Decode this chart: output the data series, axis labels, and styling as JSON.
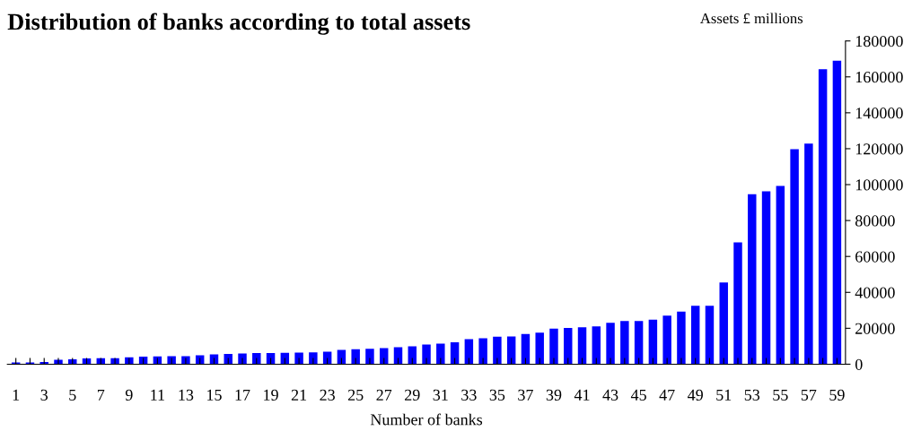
{
  "chart_data": {
    "type": "bar",
    "title": "Distribution of banks according to total assets",
    "ylabel": "Assets £ millions",
    "xlabel": "Number of banks",
    "categories": [
      "1",
      null,
      "3",
      null,
      "5",
      null,
      "7",
      null,
      "9",
      null,
      "11",
      null,
      "13",
      null,
      "15",
      null,
      "17",
      null,
      "19",
      null,
      "21",
      null,
      "23",
      null,
      "25",
      null,
      "27",
      null,
      "29",
      null,
      "31",
      null,
      "33",
      null,
      "35",
      null,
      "37",
      null,
      "39",
      null,
      "41",
      null,
      "43",
      null,
      "45",
      null,
      "47",
      null,
      "49",
      null,
      "51",
      null,
      "53",
      null,
      "55",
      null,
      "57",
      null,
      "59"
    ],
    "values": [
      1000,
      1000,
      1200,
      2500,
      2700,
      3200,
      3300,
      3300,
      3800,
      4200,
      4300,
      4500,
      4500,
      5000,
      5500,
      5700,
      6000,
      6200,
      6200,
      6300,
      6500,
      6600,
      7000,
      7900,
      8300,
      8600,
      9000,
      9500,
      10000,
      11000,
      11500,
      12200,
      14000,
      14500,
      15300,
      15400,
      16800,
      17600,
      19800,
      20200,
      20500,
      21000,
      23000,
      24000,
      24000,
      24800,
      27000,
      29300,
      32500,
      32500,
      45500,
      67800,
      94700,
      96300,
      99300,
      119700,
      122800,
      164300,
      169000
    ],
    "color": "#0000ff",
    "ylim": [
      0,
      180000
    ],
    "yticks": [
      0,
      20000,
      40000,
      60000,
      80000,
      100000,
      120000,
      140000,
      160000,
      180000
    ],
    "grid": false,
    "legend": false
  }
}
